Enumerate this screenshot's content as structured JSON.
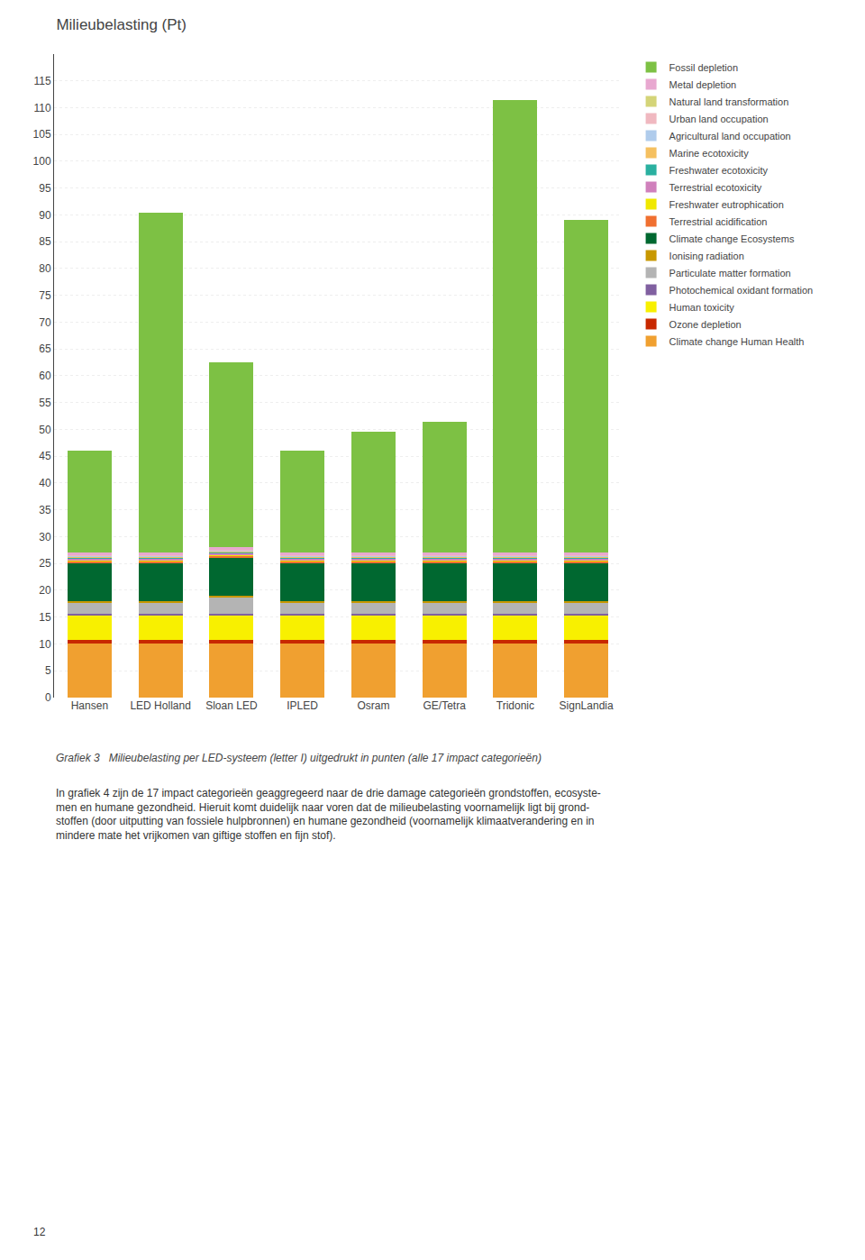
{
  "chart_data": {
    "type": "bar",
    "title": "Milieubelasting (Pt)",
    "subtitle": "Grafiek 3   Milieubelasting per LED-systeem (letter I) uitgedrukt in punten (alle 17 impact categorieën)",
    "annotations": [
      "In grafiek 4 zijn de 17 impact categorieën geaggregeerd naar de drie damage categorieën grondstoffen, ecosyste-",
      "men en humane gezondheid. Hieruit komt duidelijk naar voren dat de milieubelasting voornamelijk ligt bij grond-",
      "stoffen (door uitputting van fossiele hulpbronnen) en humane gezondheid (voornamelijk klimaatverandering en in",
      "mindere mate het vrijkomen van giftige stoffen en fijn stof).",
      "12"
    ],
    "categories": [
      "Hansen",
      "LED Holland",
      "Sloan LED",
      "IPLED",
      "Osram",
      "GE/Tetra",
      "Tridonic",
      "SignLandia"
    ],
    "stacked": true,
    "series": [
      {
        "name": "Climate change Human Health",
        "color": "#f0a030",
        "values": [
          10.0,
          10.0,
          10.0,
          10.0,
          10.0,
          10.0,
          10.0,
          10.0
        ]
      },
      {
        "name": "Ozone depletion",
        "color": "#c82800",
        "values": [
          0.8,
          0.8,
          0.8,
          0.8,
          0.8,
          0.8,
          0.8,
          0.8
        ]
      },
      {
        "name": "Human toxicity",
        "color": "#f8f000",
        "values": [
          4.5,
          4.5,
          4.5,
          4.5,
          4.5,
          4.5,
          4.5,
          4.5
        ]
      },
      {
        "name": "Photochemical oxidant formation",
        "color": "#8060a0",
        "values": [
          0.4,
          0.4,
          0.4,
          0.4,
          0.4,
          0.4,
          0.4,
          0.4
        ]
      },
      {
        "name": "Particulate matter formation",
        "color": "#b4b4b4",
        "values": [
          2.0,
          2.0,
          3.0,
          2.0,
          2.0,
          2.0,
          2.0,
          2.0
        ]
      },
      {
        "name": "Ionising radiation",
        "color": "#c89800",
        "values": [
          0.3,
          0.3,
          0.3,
          0.3,
          0.3,
          0.3,
          0.3,
          0.3
        ]
      },
      {
        "name": "Climate change Ecosystems",
        "color": "#006830",
        "values": [
          7.0,
          7.0,
          7.0,
          7.0,
          7.0,
          7.0,
          7.0,
          7.0
        ]
      },
      {
        "name": "Terrestrial acidification",
        "color": "#f07030",
        "values": [
          0.5,
          0.5,
          0.5,
          0.5,
          0.5,
          0.5,
          0.5,
          0.5
        ]
      },
      {
        "name": "Freshwater eutrophication",
        "color": "#f0e800",
        "values": [
          0.2,
          0.2,
          0.2,
          0.2,
          0.2,
          0.2,
          0.2,
          0.2
        ]
      },
      {
        "name": "Terrestrial ecotoxicity",
        "color": "#d080bc",
        "values": [
          0.2,
          0.2,
          0.2,
          0.2,
          0.2,
          0.2,
          0.2,
          0.2
        ]
      },
      {
        "name": "Freshwater ecotoxicity",
        "color": "#2ab0a0",
        "values": [
          0.2,
          0.2,
          0.2,
          0.2,
          0.2,
          0.2,
          0.2,
          0.2
        ]
      },
      {
        "name": "Marine ecotoxicity",
        "color": "#f5c060",
        "values": [
          0.2,
          0.2,
          0.2,
          0.2,
          0.2,
          0.2,
          0.2,
          0.2
        ]
      },
      {
        "name": "Agricultural land occupation",
        "color": "#b0ccec",
        "values": [
          0.2,
          0.2,
          0.2,
          0.2,
          0.2,
          0.2,
          0.2,
          0.2
        ]
      },
      {
        "name": "Urban land occupation",
        "color": "#f0b8c0",
        "values": [
          0.1,
          0.1,
          0.1,
          0.1,
          0.1,
          0.1,
          0.1,
          0.1
        ]
      },
      {
        "name": "Natural land transformation",
        "color": "#d4d478",
        "values": [
          0.1,
          0.1,
          0.1,
          0.1,
          0.1,
          0.1,
          0.1,
          0.1
        ]
      },
      {
        "name": "Metal depletion",
        "color": "#e8a8d0",
        "values": [
          0.3,
          0.3,
          0.3,
          0.3,
          0.3,
          0.3,
          0.3,
          0.3
        ]
      },
      {
        "name": "Fossil depletion",
        "color": "#7dc144",
        "values": [
          19.0,
          63.5,
          34.5,
          19.0,
          22.5,
          24.5,
          84.5,
          62.0
        ]
      }
    ],
    "ylim": [
      0,
      120
    ],
    "yticks": [
      0,
      5,
      10,
      15,
      20,
      25,
      30,
      35,
      40,
      45,
      50,
      55,
      60,
      65,
      70,
      75,
      80,
      85,
      90,
      95,
      100,
      105,
      110,
      115
    ],
    "grid": true,
    "legend": "right"
  }
}
